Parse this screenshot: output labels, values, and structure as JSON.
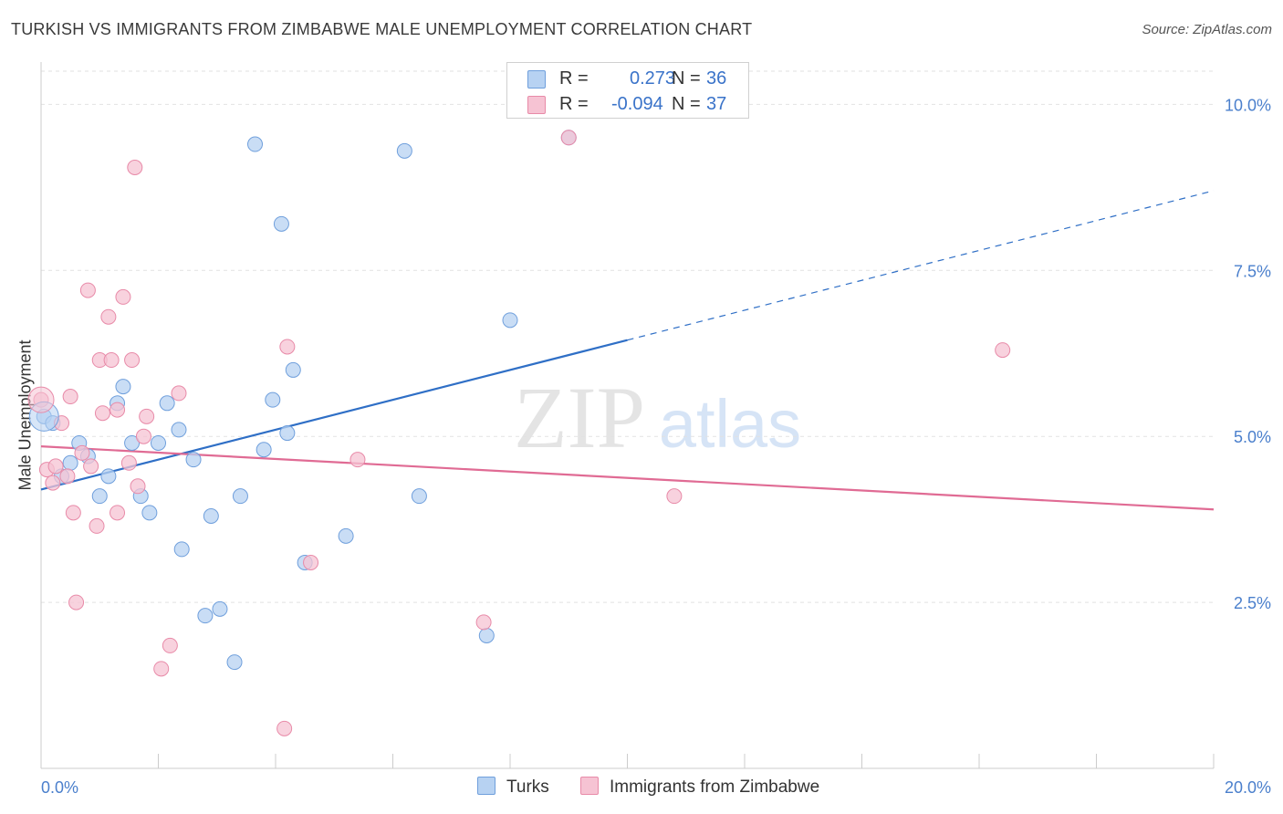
{
  "header": {
    "title": "TURKISH VS IMMIGRANTS FROM ZIMBABWE MALE UNEMPLOYMENT CORRELATION CHART",
    "source": "Source: ZipAtlas.com"
  },
  "watermark": {
    "zip": "ZIP",
    "atlas": "atlas"
  },
  "legend_stats": {
    "rows": [
      {
        "r_label": "R =",
        "r_value": "0.273",
        "n_label": "N =",
        "n_value": "36"
      },
      {
        "r_label": "R =",
        "r_value": "-0.094",
        "n_label": "N =",
        "n_value": "37"
      }
    ]
  },
  "chart_data": {
    "type": "scatter",
    "title": "TURKISH VS IMMIGRANTS FROM ZIMBABWE MALE UNEMPLOYMENT CORRELATION CHART",
    "xlabel": "",
    "ylabel": "Male Unemployment",
    "xlim": [
      0,
      20
    ],
    "ylim": [
      0,
      10.5
    ],
    "x_tick_labels": [
      "0.0%",
      "20.0%"
    ],
    "y_ticks": [
      2.5,
      5.0,
      7.5,
      10.0
    ],
    "y_tick_labels": [
      "2.5%",
      "5.0%",
      "7.5%",
      "10.0%"
    ],
    "grid": true,
    "legend_placement": "bottom",
    "colors": {
      "turks_fill": "#b7d2f2",
      "turks_stroke": "#6f9fdc",
      "turks_line": "#2f6fc6",
      "zim_fill": "#f6c3d3",
      "zim_stroke": "#e88aa8",
      "zim_line": "#e06b94",
      "tick_text": "#4a7fcc"
    },
    "series": [
      {
        "name": "Turks",
        "points": [
          [
            0.05,
            5.3
          ],
          [
            0.2,
            5.2
          ],
          [
            0.35,
            4.4
          ],
          [
            0.5,
            4.6
          ],
          [
            0.65,
            4.9
          ],
          [
            0.8,
            4.7
          ],
          [
            1.0,
            4.1
          ],
          [
            1.15,
            4.4
          ],
          [
            1.3,
            5.5
          ],
          [
            1.4,
            5.75
          ],
          [
            1.55,
            4.9
          ],
          [
            1.7,
            4.1
          ],
          [
            1.85,
            3.85
          ],
          [
            2.0,
            4.9
          ],
          [
            2.15,
            5.5
          ],
          [
            2.35,
            5.1
          ],
          [
            2.4,
            3.3
          ],
          [
            2.6,
            4.65
          ],
          [
            2.8,
            2.3
          ],
          [
            2.9,
            3.8
          ],
          [
            3.05,
            2.4
          ],
          [
            3.3,
            1.6
          ],
          [
            3.4,
            4.1
          ],
          [
            3.65,
            9.4
          ],
          [
            3.8,
            4.8
          ],
          [
            3.95,
            5.55
          ],
          [
            4.1,
            8.2
          ],
          [
            4.2,
            5.05
          ],
          [
            4.3,
            6.0
          ],
          [
            4.5,
            3.1
          ],
          [
            5.2,
            3.5
          ],
          [
            6.2,
            9.3
          ],
          [
            6.45,
            4.1
          ],
          [
            7.6,
            2.0
          ],
          [
            8.0,
            6.75
          ],
          [
            9.0,
            9.5
          ]
        ]
      },
      {
        "name": "Immigrants from Zimbabwe",
        "points": [
          [
            0.0,
            5.55
          ],
          [
            0.1,
            4.5
          ],
          [
            0.2,
            4.3
          ],
          [
            0.25,
            4.55
          ],
          [
            0.35,
            5.2
          ],
          [
            0.45,
            4.4
          ],
          [
            0.5,
            5.6
          ],
          [
            0.55,
            3.85
          ],
          [
            0.6,
            2.5
          ],
          [
            0.7,
            4.75
          ],
          [
            0.8,
            7.2
          ],
          [
            0.85,
            4.55
          ],
          [
            0.95,
            3.65
          ],
          [
            1.0,
            6.15
          ],
          [
            1.05,
            5.35
          ],
          [
            1.15,
            6.8
          ],
          [
            1.2,
            6.15
          ],
          [
            1.3,
            5.4
          ],
          [
            1.3,
            3.85
          ],
          [
            1.4,
            7.1
          ],
          [
            1.5,
            4.6
          ],
          [
            1.55,
            6.15
          ],
          [
            1.6,
            9.05
          ],
          [
            1.65,
            4.25
          ],
          [
            1.75,
            5.0
          ],
          [
            1.8,
            5.3
          ],
          [
            2.05,
            1.5
          ],
          [
            2.2,
            1.85
          ],
          [
            2.35,
            5.65
          ],
          [
            4.15,
            0.6
          ],
          [
            4.2,
            6.35
          ],
          [
            4.6,
            3.1
          ],
          [
            5.4,
            4.65
          ],
          [
            7.55,
            2.2
          ],
          [
            10.8,
            4.1
          ],
          [
            16.4,
            6.3
          ],
          [
            9.0,
            9.5
          ]
        ]
      }
    ],
    "trendlines": [
      {
        "series": "Turks",
        "x0": 0.0,
        "y0": 4.2,
        "x1": 10.0,
        "y1": 6.45,
        "extend_to_x": 20.0,
        "extend_y": 8.7
      },
      {
        "series": "Immigrants from Zimbabwe",
        "x0": 0.0,
        "y0": 4.85,
        "x1": 20.0,
        "y1": 3.9
      }
    ]
  }
}
